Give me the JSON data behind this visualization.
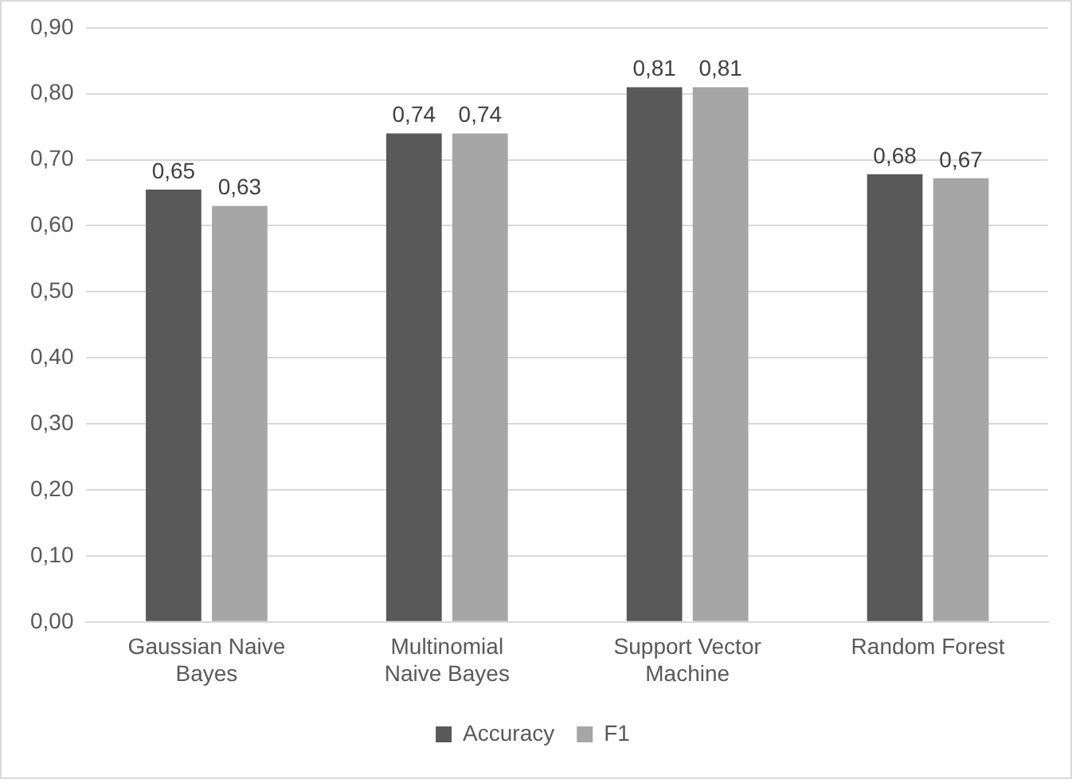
{
  "chart_data": {
    "type": "bar",
    "categories": [
      "Gaussian Naive Bayes",
      "Multinomial Naive Bayes",
      "Support Vector Machine",
      "Random Forest"
    ],
    "series": [
      {
        "name": "Accuracy",
        "color": "#595959",
        "values": [
          0.655,
          0.74,
          0.81,
          0.678
        ],
        "value_labels": [
          "0,65",
          "0,74",
          "0,81",
          "0,68"
        ]
      },
      {
        "name": "F1",
        "color": "#a6a6a6",
        "values": [
          0.63,
          0.74,
          0.81,
          0.672
        ],
        "value_labels": [
          "0,63",
          "0,74",
          "0,81",
          "0,67"
        ]
      }
    ],
    "ylim": [
      0,
      0.9
    ],
    "yticks": [
      {
        "value": 0,
        "label": "0,00"
      },
      {
        "value": 0.1,
        "label": "0,10"
      },
      {
        "value": 0.2,
        "label": "0,20"
      },
      {
        "value": 0.3,
        "label": "0,30"
      },
      {
        "value": 0.4,
        "label": "0,40"
      },
      {
        "value": 0.5,
        "label": "0,50"
      },
      {
        "value": 0.6,
        "label": "0,60"
      },
      {
        "value": 0.7,
        "label": "0,70"
      },
      {
        "value": 0.8,
        "label": "0,80"
      },
      {
        "value": 0.9,
        "label": "0,90"
      }
    ],
    "grid": "y",
    "legend": "bottom"
  }
}
